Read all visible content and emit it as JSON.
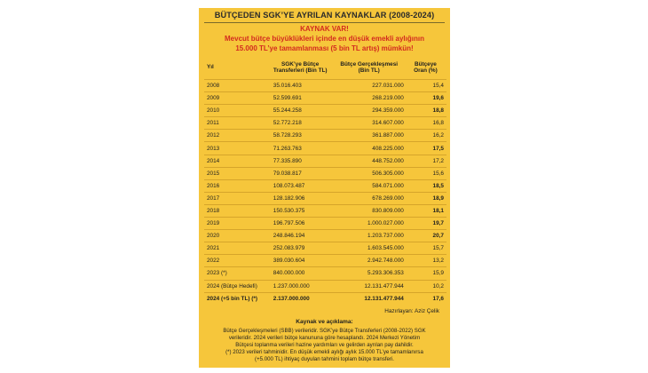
{
  "title": "BÜTÇEDEN SGK’YE AYRILAN KAYNAKLAR (2008-2024)",
  "headline": {
    "line1": "KAYNAK VAR!",
    "line2": "Mevcut bütçe büyüklükleri içinde en düşük emekli aylığının",
    "line3": "15.000 TL’ye tamamlanması (5 bin TL artış) mümkün!"
  },
  "table": {
    "headers": {
      "year": "Yıl",
      "sgk": "SGK’ye Bütçe Transferleri (Bin TL)",
      "gerceklesme": "Bütçe Gerçekleşmesi (Bin TL)",
      "oran": "Bütçeye Oran (%)"
    },
    "rows": [
      {
        "year": "2008",
        "sgk": "35.016.403",
        "gerceklesme": "227.031.000",
        "oran": "15,4",
        "bold": false
      },
      {
        "year": "2009",
        "sgk": "52.599.691",
        "gerceklesme": "268.219.000",
        "oran": "19,6",
        "bold": true
      },
      {
        "year": "2010",
        "sgk": "55.244.258",
        "gerceklesme": "294.359.000",
        "oran": "18,8",
        "bold": true
      },
      {
        "year": "2011",
        "sgk": "52.772.218",
        "gerceklesme": "314.607.000",
        "oran": "16,8",
        "bold": false
      },
      {
        "year": "2012",
        "sgk": "58.728.293",
        "gerceklesme": "361.887.000",
        "oran": "16,2",
        "bold": false
      },
      {
        "year": "2013",
        "sgk": "71.263.763",
        "gerceklesme": "408.225.000",
        "oran": "17,5",
        "bold": true
      },
      {
        "year": "2014",
        "sgk": "77.335.890",
        "gerceklesme": "448.752.000",
        "oran": "17,2",
        "bold": false
      },
      {
        "year": "2015",
        "sgk": "79.038.817",
        "gerceklesme": "506.305.000",
        "oran": "15,6",
        "bold": false
      },
      {
        "year": "2016",
        "sgk": "108.073.487",
        "gerceklesme": "584.071.000",
        "oran": "18,5",
        "bold": true
      },
      {
        "year": "2017",
        "sgk": "128.182.906",
        "gerceklesme": "678.269.000",
        "oran": "18,9",
        "bold": true
      },
      {
        "year": "2018",
        "sgk": "150.530.375",
        "gerceklesme": "830.809.000",
        "oran": "18,1",
        "bold": true
      },
      {
        "year": "2019",
        "sgk": "196.797.506",
        "gerceklesme": "1.000.027.000",
        "oran": "19,7",
        "bold": true
      },
      {
        "year": "2020",
        "sgk": "248.846.194",
        "gerceklesme": "1.203.737.000",
        "oran": "20,7",
        "bold": true
      },
      {
        "year": "2021",
        "sgk": "252.083.979",
        "gerceklesme": "1.603.545.000",
        "oran": "15,7",
        "bold": false
      },
      {
        "year": "2022",
        "sgk": "389.030.604",
        "gerceklesme": "2.942.748.000",
        "oran": "13,2",
        "bold": false
      },
      {
        "year": "2023 (*)",
        "sgk": "840.000.000",
        "gerceklesme": "5.293.306.353",
        "oran": "15,9",
        "bold": false
      },
      {
        "year": "2024 (Bütçe Hedefi)",
        "sgk": "1.237.000.000",
        "gerceklesme": "12.131.477.944",
        "oran": "10,2",
        "bold": false
      },
      {
        "year": "2024 (+5 bin TL) (*)",
        "sgk": "2.137.000.000",
        "gerceklesme": "12.131.477.944",
        "oran": "17,6",
        "bold": true,
        "all_bold": true
      }
    ]
  },
  "source": "Hazırlayan: Aziz Çelik",
  "notes": {
    "title": "Kaynak ve açıklama:",
    "lines": [
      "Bütçe Gerçekleşmeleri (SBB) verileridir. SGK’ye Bütçe Transferleri (2008-2022) SGK",
      "verileridir. 2024 verileri bütçe kanununa göre hesaplandı.  2024 Merkezi Yönetim",
      "Bütçesi toplanma verileri hazine yardımları ve gelirden ayrılan pay dahildir.",
      "(*) 2023 verileri tahminidir. En düşük emekli aylığı aylık 15.000 TL’ye tamamlanırsa",
      "(+5.000 TL) ihtiyaç duyulan tahmini toplam bütçe transferi."
    ]
  }
}
